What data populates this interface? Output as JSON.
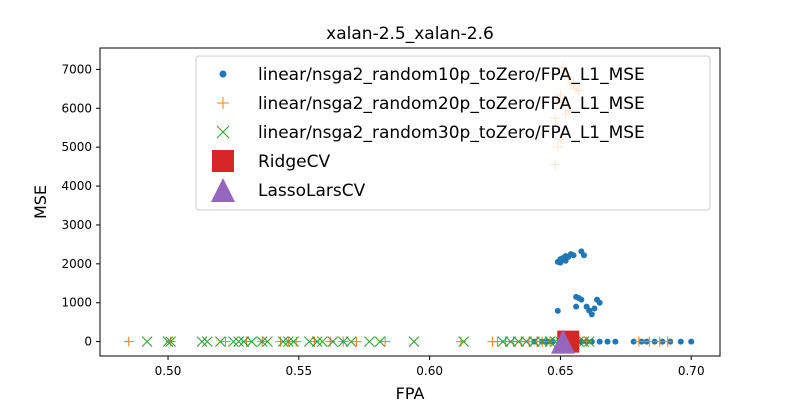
{
  "chart_data": {
    "type": "scatter",
    "title": "xalan-2.5_xalan-2.6",
    "xlabel": "FPA",
    "ylabel": "MSE",
    "xlim": [
      0.474,
      0.711
    ],
    "ylim": [
      -370,
      7550
    ],
    "xticks": [
      0.5,
      0.55,
      0.6,
      0.65,
      0.7
    ],
    "xtick_labels": [
      "0.50",
      "0.55",
      "0.60",
      "0.65",
      "0.70"
    ],
    "yticks": [
      0,
      1000,
      2000,
      3000,
      4000,
      5000,
      6000,
      7000
    ],
    "ytick_labels": [
      "0",
      "1000",
      "2000",
      "3000",
      "4000",
      "5000",
      "6000",
      "7000"
    ],
    "grid": false,
    "legend_position": "top-right",
    "series": [
      {
        "name": "linear/nsga2_random10p_toZero/FPA_L1_MSE",
        "marker": "dot",
        "color": "#1f77b4",
        "points": [
          [
            0.649,
            2050
          ],
          [
            0.65,
            2030
          ],
          [
            0.651,
            2100
          ],
          [
            0.651,
            2150
          ],
          [
            0.652,
            2200
          ],
          [
            0.652,
            2080
          ],
          [
            0.653,
            2180
          ],
          [
            0.654,
            2250
          ],
          [
            0.655,
            2220
          ],
          [
            0.65,
            2120
          ],
          [
            0.658,
            2320
          ],
          [
            0.659,
            2220
          ],
          [
            0.649,
            790
          ],
          [
            0.656,
            1150
          ],
          [
            0.657,
            1120
          ],
          [
            0.658,
            1080
          ],
          [
            0.656,
            900
          ],
          [
            0.66,
            900
          ],
          [
            0.661,
            800
          ],
          [
            0.662,
            700
          ],
          [
            0.664,
            1080
          ],
          [
            0.665,
            1000
          ],
          [
            0.663,
            850
          ],
          [
            0.64,
            0
          ],
          [
            0.643,
            0
          ],
          [
            0.645,
            0
          ],
          [
            0.647,
            0
          ],
          [
            0.65,
            0
          ],
          [
            0.654,
            0
          ],
          [
            0.656,
            0
          ],
          [
            0.658,
            0
          ],
          [
            0.66,
            0
          ],
          [
            0.662,
            0
          ],
          [
            0.665,
            0
          ],
          [
            0.668,
            0
          ],
          [
            0.671,
            0
          ],
          [
            0.678,
            0
          ],
          [
            0.681,
            0
          ],
          [
            0.683,
            0
          ],
          [
            0.686,
            0
          ],
          [
            0.689,
            0
          ],
          [
            0.692,
            0
          ],
          [
            0.696,
            0
          ],
          [
            0.7,
            0
          ]
        ]
      },
      {
        "name": "linear/nsga2_random20p_toZero/FPA_L1_MSE",
        "marker": "plus",
        "color": "#ff7f0e",
        "points": [
          [
            0.651,
            7050
          ],
          [
            0.652,
            6900
          ],
          [
            0.653,
            6800
          ],
          [
            0.654,
            6600
          ],
          [
            0.656,
            6500
          ],
          [
            0.657,
            6450
          ],
          [
            0.65,
            6350
          ],
          [
            0.649,
            6200
          ],
          [
            0.651,
            6150
          ],
          [
            0.653,
            5950
          ],
          [
            0.648,
            5750
          ],
          [
            0.65,
            5200
          ],
          [
            0.649,
            5000
          ],
          [
            0.648,
            4550
          ],
          [
            0.652,
            5850
          ],
          [
            0.655,
            6650
          ],
          [
            0.485,
            0
          ],
          [
            0.501,
            0
          ],
          [
            0.522,
            0
          ],
          [
            0.53,
            0
          ],
          [
            0.536,
            0
          ],
          [
            0.543,
            0
          ],
          [
            0.546,
            0
          ],
          [
            0.549,
            0
          ],
          [
            0.556,
            0
          ],
          [
            0.562,
            0
          ],
          [
            0.567,
            0
          ],
          [
            0.572,
            0
          ],
          [
            0.583,
            0
          ],
          [
            0.612,
            0
          ],
          [
            0.624,
            0
          ],
          [
            0.626,
            0
          ],
          [
            0.629,
            0
          ],
          [
            0.632,
            0
          ],
          [
            0.635,
            0
          ],
          [
            0.638,
            0
          ],
          [
            0.641,
            0
          ],
          [
            0.643,
            0
          ],
          [
            0.646,
            0
          ],
          [
            0.651,
            0
          ],
          [
            0.655,
            0
          ],
          [
            0.66,
            0
          ],
          [
            0.68,
            0
          ],
          [
            0.684,
            0
          ],
          [
            0.688,
            0
          ],
          [
            0.691,
            0
          ]
        ]
      },
      {
        "name": "linear/nsga2_random30p_toZero/FPA_L1_MSE",
        "marker": "x",
        "color": "#2ca02c",
        "points": [
          [
            0.492,
            0
          ],
          [
            0.5,
            0
          ],
          [
            0.501,
            0
          ],
          [
            0.513,
            0
          ],
          [
            0.515,
            0
          ],
          [
            0.52,
            0
          ],
          [
            0.525,
            0
          ],
          [
            0.527,
            0
          ],
          [
            0.529,
            0
          ],
          [
            0.532,
            0
          ],
          [
            0.536,
            0
          ],
          [
            0.538,
            0
          ],
          [
            0.544,
            0
          ],
          [
            0.546,
            0
          ],
          [
            0.548,
            0
          ],
          [
            0.554,
            0
          ],
          [
            0.557,
            0
          ],
          [
            0.559,
            0
          ],
          [
            0.563,
            0
          ],
          [
            0.567,
            0
          ],
          [
            0.57,
            0
          ],
          [
            0.577,
            0
          ],
          [
            0.581,
            0
          ],
          [
            0.594,
            0
          ],
          [
            0.613,
            0
          ],
          [
            0.628,
            0
          ],
          [
            0.631,
            0
          ],
          [
            0.634,
            0
          ],
          [
            0.637,
            0
          ],
          [
            0.64,
            0
          ],
          [
            0.643,
            0
          ],
          [
            0.646,
            0
          ],
          [
            0.648,
            0
          ],
          [
            0.65,
            0
          ],
          [
            0.652,
            0
          ],
          [
            0.655,
            0
          ],
          [
            0.657,
            0
          ],
          [
            0.659,
            0
          ],
          [
            0.661,
            0
          ]
        ]
      },
      {
        "name": "RidgeCV",
        "marker": "square",
        "color": "#d62728",
        "points": [
          [
            0.653,
            0
          ]
        ]
      },
      {
        "name": "LassoLarsCV",
        "marker": "triangle",
        "color": "#9467bd",
        "points": [
          [
            0.651,
            0
          ]
        ]
      }
    ]
  }
}
